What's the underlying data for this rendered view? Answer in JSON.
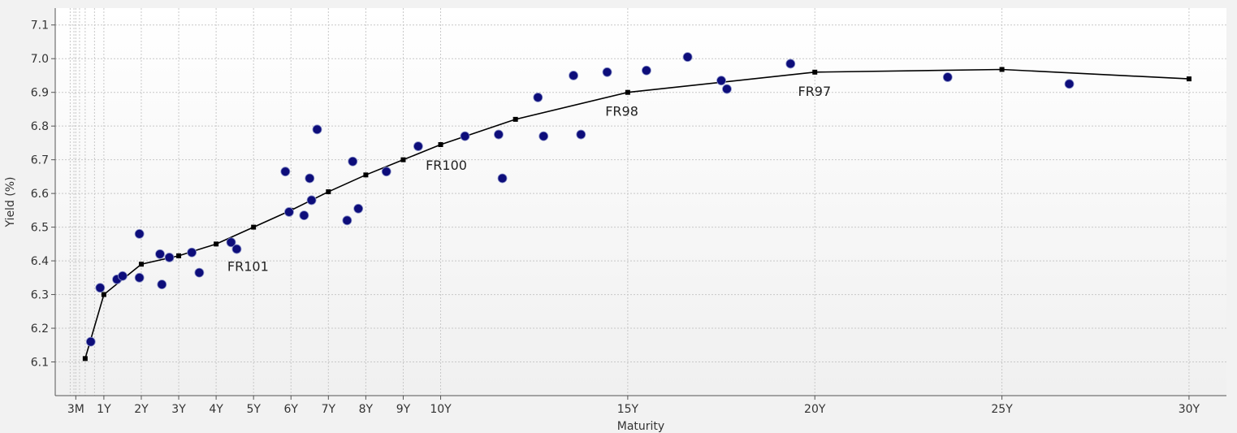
{
  "chart_data": {
    "type": "scatter",
    "title": "",
    "xlabel": "Maturity",
    "ylabel": "Yield (%)",
    "xlim": [
      -0.3,
      31
    ],
    "ylim": [
      6.0,
      7.15
    ],
    "grid": true,
    "x_ticks": [
      {
        "value": 0.25,
        "label": "3M"
      },
      {
        "value": 1,
        "label": "1Y"
      },
      {
        "value": 2,
        "label": "2Y"
      },
      {
        "value": 3,
        "label": "3Y"
      },
      {
        "value": 4,
        "label": "4Y"
      },
      {
        "value": 5,
        "label": "5Y"
      },
      {
        "value": 6,
        "label": "6Y"
      },
      {
        "value": 7,
        "label": "7Y"
      },
      {
        "value": 8,
        "label": "8Y"
      },
      {
        "value": 9,
        "label": "9Y"
      },
      {
        "value": 10,
        "label": "10Y"
      },
      {
        "value": 15,
        "label": "15Y"
      },
      {
        "value": 20,
        "label": "20Y"
      },
      {
        "value": 25,
        "label": "25Y"
      },
      {
        "value": 30,
        "label": "30Y"
      }
    ],
    "minor_x_gridlines": [
      0.1,
      0.2,
      0.35,
      0.5,
      0.75
    ],
    "y_ticks": [
      "6.1",
      "6.2",
      "6.3",
      "6.4",
      "6.5",
      "6.6",
      "6.7",
      "6.8",
      "6.9",
      "7.0",
      "7.1"
    ],
    "series": [
      {
        "type": "line",
        "color": "#000000",
        "points": [
          [
            0.5,
            6.11
          ],
          [
            1,
            6.3
          ],
          [
            2,
            6.39
          ],
          [
            3,
            6.415
          ],
          [
            4,
            6.45
          ],
          [
            5,
            6.5
          ],
          [
            6,
            6.55
          ],
          [
            7,
            6.605
          ],
          [
            8,
            6.655
          ],
          [
            9,
            6.7
          ],
          [
            10,
            6.745
          ],
          [
            12,
            6.82
          ],
          [
            15,
            6.9
          ],
          [
            20,
            6.96
          ],
          [
            25,
            6.968
          ],
          [
            30,
            6.94
          ]
        ]
      },
      {
        "type": "scatter",
        "color": "#0d0d7a",
        "points": [
          [
            0.65,
            6.16
          ],
          [
            0.9,
            6.32
          ],
          [
            1.35,
            6.345
          ],
          [
            1.5,
            6.355
          ],
          [
            1.95,
            6.48
          ],
          [
            1.95,
            6.35
          ],
          [
            2.5,
            6.42
          ],
          [
            2.55,
            6.33
          ],
          [
            2.75,
            6.41
          ],
          [
            3.35,
            6.425
          ],
          [
            3.55,
            6.365
          ],
          [
            4.4,
            6.455
          ],
          [
            4.55,
            6.435
          ],
          [
            5.85,
            6.665
          ],
          [
            5.95,
            6.545
          ],
          [
            6.35,
            6.535
          ],
          [
            6.5,
            6.645
          ],
          [
            6.55,
            6.58
          ],
          [
            6.7,
            6.79
          ],
          [
            7.5,
            6.52
          ],
          [
            7.65,
            6.695
          ],
          [
            7.8,
            6.555
          ],
          [
            8.55,
            6.665
          ],
          [
            9.4,
            6.74
          ],
          [
            10.65,
            6.77
          ],
          [
            11.55,
            6.775
          ],
          [
            11.65,
            6.645
          ],
          [
            12.6,
            6.885
          ],
          [
            12.75,
            6.77
          ],
          [
            13.55,
            6.95
          ],
          [
            13.75,
            6.775
          ],
          [
            14.45,
            6.96
          ],
          [
            15.5,
            6.965
          ],
          [
            16.6,
            7.005
          ],
          [
            17.5,
            6.935
          ],
          [
            17.65,
            6.91
          ],
          [
            19.35,
            6.985
          ],
          [
            23.55,
            6.945
          ],
          [
            26.8,
            6.925
          ]
        ]
      }
    ],
    "annotations": [
      {
        "text": "FR101",
        "x": 4.3,
        "y": 6.37
      },
      {
        "text": "FR100",
        "x": 9.6,
        "y": 6.67
      },
      {
        "text": "FR98",
        "x": 14.4,
        "y": 6.83
      },
      {
        "text": "FR97",
        "x": 19.55,
        "y": 6.89
      }
    ]
  }
}
